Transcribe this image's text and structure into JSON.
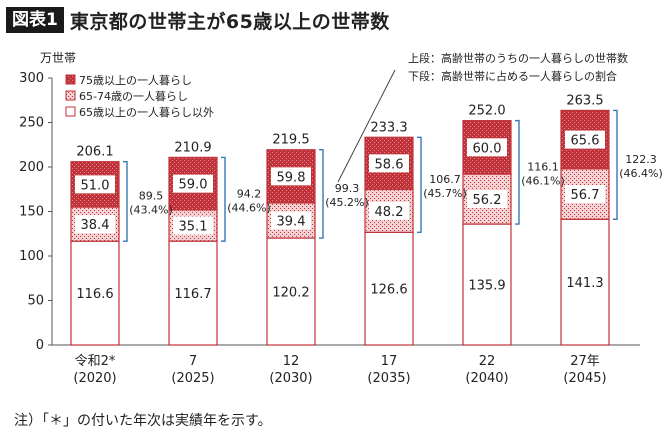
{
  "figure": {
    "badge": "図表1",
    "title": "東京都の世帯主が65歳以上の世帯数",
    "note": "注）「＊」の付いた年次は実績年を示す。"
  },
  "legend_note": {
    "line1": "上段：高齢世帯のうちの一人暮らしの世帯数",
    "line2": "下段：高齢世帯に占める一人暮らしの割合"
  },
  "colors": {
    "over75": "#c0323a",
    "age65_74": "#e7a8aa",
    "other": "#ffffff",
    "border": "#c0323a",
    "bracket": "#3a78b8"
  },
  "chart_data": {
    "type": "bar",
    "stacked": true,
    "unit_label": "万世帯",
    "ylim": [
      0,
      300
    ],
    "yticks": [
      0,
      50,
      100,
      150,
      200,
      250,
      300
    ],
    "categories": [
      {
        "top": "令和2*",
        "bottom": "(2020)"
      },
      {
        "top": "7",
        "bottom": "(2025)"
      },
      {
        "top": "12",
        "bottom": "(2030)"
      },
      {
        "top": "17",
        "bottom": "(2035)"
      },
      {
        "top": "22",
        "bottom": "(2040)"
      },
      {
        "top": "27年",
        "bottom": "(2045)"
      }
    ],
    "series": [
      {
        "name": "65歳以上の一人暮らし以外",
        "values": [
          116.6,
          116.7,
          120.2,
          126.6,
          135.9,
          141.3
        ]
      },
      {
        "name": "65-74歳の一人暮らし",
        "values": [
          38.4,
          35.1,
          39.4,
          48.2,
          56.2,
          56.7
        ]
      },
      {
        "name": "75歳以上の一人暮らし",
        "values": [
          51.0,
          59.0,
          59.8,
          58.6,
          60.0,
          65.6
        ]
      }
    ],
    "totals": [
      "206.1",
      "210.9",
      "219.5",
      "233.3",
      "252.0",
      "263.5"
    ],
    "single_households": [
      "89.5",
      "94.2",
      "99.3",
      "106.7",
      "116.1",
      "122.3"
    ],
    "single_share": [
      "(43.4%)",
      "(44.6%)",
      "(45.2%)",
      "(45.7%)",
      "(46.1%)",
      "(46.4%)"
    ],
    "legend_position": "top-left"
  }
}
